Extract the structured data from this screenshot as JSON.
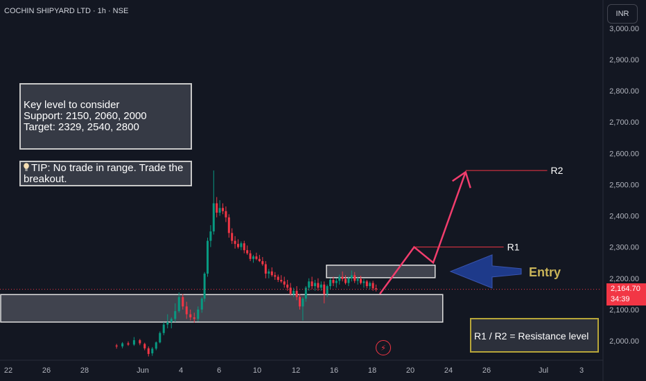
{
  "header": {
    "symbol_title": "COCHIN SHIPYARD LTD · 1h · NSE",
    "currency_button": "INR"
  },
  "annotations": {
    "key_levels": {
      "heading": "Key level to consider",
      "support": "Support: 2150, 2060, 2000",
      "target": "Target: 2329, 2540, 2800"
    },
    "tip": "TIP: No trade in range. Trade the breakout.",
    "legend_note": "R1 / R2 = Resistance level",
    "labels": {
      "r1": "R1",
      "r2": "R2",
      "entry": "Entry"
    }
  },
  "price_tag": {
    "price": "2,164.70",
    "countdown": "34:39"
  },
  "icons": {
    "alert": "flash-icon",
    "tip": "lightbulb-icon",
    "entry_arrow": "arrow-left-icon"
  },
  "colors": {
    "background": "#131722",
    "bullish": "#089981",
    "bearish": "#f23645",
    "projection": "#f23d6d",
    "entry_arrow": "#1e3a8a",
    "entry_text": "#c9b458",
    "zone_border": "#e0e0e0",
    "price_line": "#f23645"
  },
  "chart_data": {
    "type": "candlestick",
    "title": "COCHIN SHIPYARD LTD · 1h · NSE",
    "y_axis": {
      "ticks": [
        2000,
        2100,
        2200,
        2300,
        2400,
        2500,
        2600,
        2700,
        2800,
        2900,
        3000
      ],
      "tick_labels": [
        "2,000.00",
        "2,100.00",
        "2,200.00",
        "2,300.00",
        "2,400.00",
        "2,500.00",
        "2,600.00",
        "2,700.00",
        "2,800.00",
        "2,900.00",
        "3,000.00"
      ],
      "range": [
        1940,
        3040
      ]
    },
    "x_axis": {
      "ticks": [
        {
          "label": "22",
          "day": 0
        },
        {
          "label": "26",
          "day": 1
        },
        {
          "label": "28",
          "day": 2
        },
        {
          "label": "Jun",
          "day": 3
        },
        {
          "label": "4",
          "day": 4
        },
        {
          "label": "6",
          "day": 5
        },
        {
          "label": "10",
          "day": 6
        },
        {
          "label": "12",
          "day": 7
        },
        {
          "label": "16",
          "day": 8
        },
        {
          "label": "18",
          "day": 9
        },
        {
          "label": "20",
          "day": 10
        },
        {
          "label": "24",
          "day": 11
        },
        {
          "label": "26",
          "day": 12
        },
        {
          "label": "Jul",
          "day": 13
        },
        {
          "label": "3",
          "day": 14
        }
      ]
    },
    "candles": [
      [
        2.55,
        1985,
        1990,
        1975,
        1982
      ],
      [
        2.65,
        1982,
        1996,
        1976,
        1992
      ],
      [
        2.75,
        1992,
        1998,
        1984,
        1988
      ],
      [
        2.85,
        1988,
        2012,
        1984,
        2002
      ],
      [
        2.95,
        2002,
        2006,
        1986,
        1992
      ],
      [
        3.05,
        1990,
        1994,
        1970,
        1976
      ],
      [
        3.15,
        1976,
        1982,
        1950,
        1958
      ],
      [
        3.25,
        1960,
        1980,
        1952,
        1975
      ],
      [
        3.35,
        1975,
        1998,
        1970,
        1995
      ],
      [
        3.45,
        1995,
        2030,
        1992,
        2025
      ],
      [
        3.55,
        2025,
        2060,
        2018,
        2052
      ],
      [
        3.65,
        2052,
        2085,
        2040,
        2060
      ],
      [
        3.75,
        2060,
        2075,
        2040,
        2070
      ],
      [
        3.85,
        2070,
        2120,
        2060,
        2095
      ],
      [
        3.95,
        2095,
        2155,
        2090,
        2140
      ],
      [
        4.05,
        2140,
        2150,
        2100,
        2110
      ],
      [
        4.15,
        2110,
        2125,
        2070,
        2085
      ],
      [
        4.25,
        2085,
        2100,
        2065,
        2075
      ],
      [
        4.35,
        2075,
        2090,
        2058,
        2070
      ],
      [
        4.45,
        2070,
        2110,
        2062,
        2100
      ],
      [
        4.55,
        2100,
        2140,
        2090,
        2135
      ],
      [
        4.62,
        2135,
        2220,
        2125,
        2215
      ],
      [
        4.7,
        2215,
        2330,
        2205,
        2320
      ],
      [
        4.78,
        2320,
        2370,
        2300,
        2350
      ],
      [
        4.86,
        2350,
        2545,
        2340,
        2440
      ],
      [
        4.94,
        2440,
        2460,
        2395,
        2410
      ],
      [
        5.02,
        2410,
        2450,
        2400,
        2425
      ],
      [
        5.1,
        2425,
        2440,
        2405,
        2415
      ],
      [
        5.18,
        2415,
        2430,
        2380,
        2395
      ],
      [
        5.26,
        2395,
        2405,
        2330,
        2345
      ],
      [
        5.34,
        2345,
        2360,
        2310,
        2320
      ],
      [
        5.42,
        2320,
        2335,
        2295,
        2310
      ],
      [
        5.5,
        2310,
        2325,
        2295,
        2300
      ],
      [
        5.58,
        2300,
        2318,
        2290,
        2312
      ],
      [
        5.66,
        2312,
        2320,
        2280,
        2290
      ],
      [
        5.74,
        2290,
        2305,
        2275,
        2280
      ],
      [
        5.82,
        2280,
        2290,
        2255,
        2262
      ],
      [
        5.9,
        2262,
        2275,
        2250,
        2270
      ],
      [
        5.98,
        2270,
        2282,
        2258,
        2262
      ],
      [
        6.06,
        2262,
        2275,
        2252,
        2255
      ],
      [
        6.14,
        2255,
        2268,
        2240,
        2245
      ],
      [
        6.22,
        2245,
        2255,
        2200,
        2215
      ],
      [
        6.3,
        2215,
        2230,
        2200,
        2222
      ],
      [
        6.38,
        2222,
        2235,
        2205,
        2210
      ],
      [
        6.46,
        2210,
        2220,
        2195,
        2205
      ],
      [
        6.54,
        2205,
        2212,
        2188,
        2195
      ],
      [
        6.62,
        2195,
        2210,
        2185,
        2190
      ],
      [
        6.7,
        2190,
        2205,
        2170,
        2180
      ],
      [
        6.78,
        2180,
        2195,
        2160,
        2170
      ],
      [
        6.86,
        2170,
        2185,
        2145,
        2150
      ],
      [
        6.94,
        2150,
        2170,
        2140,
        2160
      ],
      [
        7.02,
        2160,
        2175,
        2130,
        2140
      ],
      [
        7.1,
        2140,
        2150,
        2100,
        2110
      ],
      [
        7.18,
        2110,
        2140,
        2065,
        2135
      ],
      [
        7.26,
        2135,
        2175,
        2125,
        2170
      ],
      [
        7.34,
        2170,
        2200,
        2160,
        2190
      ],
      [
        7.42,
        2190,
        2205,
        2165,
        2175
      ],
      [
        7.5,
        2175,
        2195,
        2160,
        2185
      ],
      [
        7.58,
        2185,
        2200,
        2160,
        2170
      ],
      [
        7.66,
        2170,
        2190,
        2160,
        2180
      ],
      [
        7.74,
        2180,
        2190,
        2120,
        2150
      ],
      [
        7.82,
        2150,
        2180,
        2140,
        2175
      ],
      [
        7.9,
        2175,
        2200,
        2165,
        2195
      ],
      [
        7.98,
        2195,
        2205,
        2175,
        2185
      ],
      [
        8.06,
        2185,
        2200,
        2170,
        2192
      ],
      [
        8.14,
        2192,
        2212,
        2180,
        2205
      ],
      [
        8.22,
        2205,
        2222,
        2190,
        2198
      ],
      [
        8.3,
        2198,
        2210,
        2180,
        2185
      ],
      [
        8.38,
        2185,
        2205,
        2175,
        2200
      ],
      [
        8.46,
        2200,
        2225,
        2190,
        2210
      ],
      [
        8.54,
        2210,
        2220,
        2185,
        2192
      ],
      [
        8.62,
        2192,
        2205,
        2180,
        2198
      ],
      [
        8.7,
        2198,
        2208,
        2180,
        2185
      ],
      [
        8.78,
        2185,
        2198,
        2170,
        2190
      ],
      [
        8.86,
        2190,
        2195,
        2168,
        2175
      ],
      [
        8.94,
        2175,
        2190,
        2165,
        2185
      ],
      [
        9.02,
        2185,
        2192,
        2160,
        2168
      ],
      [
        9.1,
        2168,
        2180,
        2158,
        2165
      ]
    ],
    "zones": [
      {
        "name": "support-zone",
        "from_day": -0.2,
        "to_day": 10.85,
        "low": 2060,
        "high": 2148
      },
      {
        "name": "resistance-zone",
        "from_day": 7.8,
        "to_day": 10.65,
        "low": 2202,
        "high": 2242
      }
    ],
    "projection_path": [
      [
        9.2,
        2150
      ],
      [
        10.1,
        2300
      ],
      [
        10.6,
        2250
      ],
      [
        11.45,
        2540
      ]
    ],
    "levels": [
      {
        "label": "R1",
        "price": 2300,
        "from_day": 10.1,
        "to_day": 12.3
      },
      {
        "label": "R2",
        "price": 2545,
        "from_day": 11.45,
        "to_day": 13.1
      }
    ],
    "last_price": 2164.7
  }
}
